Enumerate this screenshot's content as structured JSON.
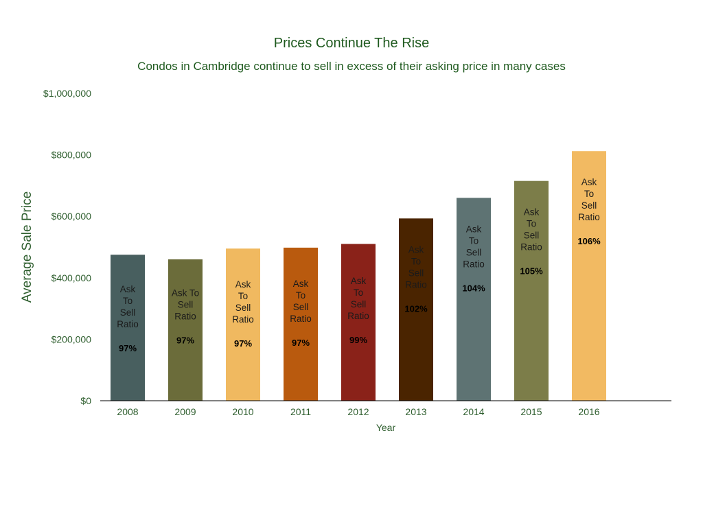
{
  "chart_data": {
    "type": "bar",
    "title": "Prices Continue The Rise",
    "subtitle": "Condos in Cambridge continue to sell in excess of their asking price in many cases",
    "xlabel": "Year",
    "ylabel": "Average Sale Price",
    "ylim": [
      0,
      1000000
    ],
    "yticks": [
      0,
      200000,
      400000,
      600000,
      800000,
      1000000
    ],
    "ytick_labels": [
      "$0",
      "$200,000",
      "$400,000",
      "$600,000",
      "$800,000",
      "$1,000,000"
    ],
    "grid": false,
    "categories": [
      "2008",
      "2009",
      "2010",
      "2011",
      "2012",
      "2013",
      "2014",
      "2015",
      "2016"
    ],
    "values": [
      475000,
      460000,
      495000,
      498000,
      510000,
      593000,
      660000,
      715000,
      812000
    ],
    "colors": [
      "#485f5f",
      "#6b6c3a",
      "#f0b960",
      "#b95a0e",
      "#8a2219",
      "#4a2400",
      "#5e7373",
      "#7c7d49",
      "#f2ba62"
    ],
    "annotations": [
      {
        "lines": [
          "Ask",
          "To",
          "Sell",
          "Ratio"
        ],
        "value": "97%"
      },
      {
        "lines": [
          "Ask To",
          "Sell",
          "Ratio"
        ],
        "value": "97%"
      },
      {
        "lines": [
          "Ask",
          "To",
          "Sell",
          "Ratio"
        ],
        "value": "97%"
      },
      {
        "lines": [
          "Ask",
          "To",
          "Sell",
          "Ratio"
        ],
        "value": "97%"
      },
      {
        "lines": [
          "Ask",
          "To",
          "Sell",
          "Ratio"
        ],
        "value": "99%"
      },
      {
        "lines": [
          "Ask",
          "To",
          "Sell",
          "Ratio"
        ],
        "value": "102%"
      },
      {
        "lines": [
          "Ask",
          "To",
          "Sell",
          "Ratio"
        ],
        "value": "104%"
      },
      {
        "lines": [
          "Ask",
          "To",
          "Sell",
          "Ratio"
        ],
        "value": "105%"
      },
      {
        "lines": [
          "Ask",
          "To",
          "Sell",
          "Ratio"
        ],
        "value": "106%"
      }
    ]
  }
}
